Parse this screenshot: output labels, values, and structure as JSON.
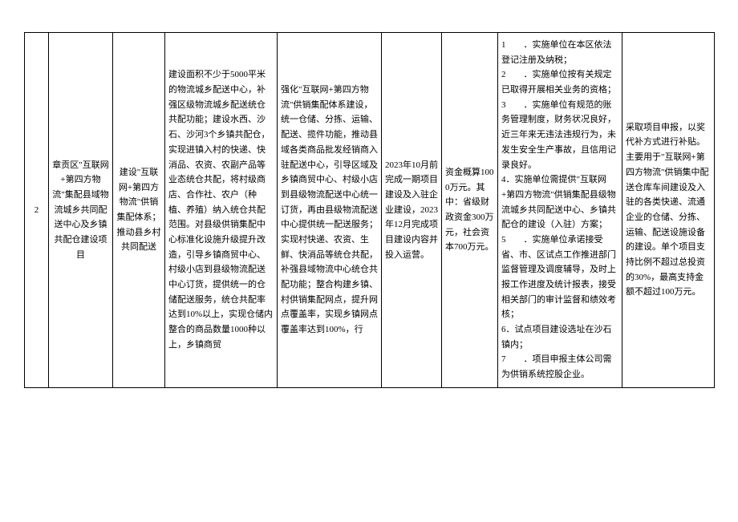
{
  "table": {
    "row": {
      "index": "2",
      "c1": "章贡区\"互联网+第四方物流\"集配县域物流城乡共同配送中心及乡镇共配仓建设项目",
      "c2": "建设\"互联网+第四方物流\"供销集配体系；推动县乡村共同配送",
      "c3": "建设面积不少于5000平米的物流城乡配送中心，补强区级物流城乡配送统仓共配功能；建设水西、沙石、沙河3个乡镇共配仓，实现进镇入村的快递、快消品、农资、农副产品等业态统仓共配，将村级商店、合作社、农户（种植、养殖）纳入统仓共配范围。对县级供销集配中心标准化设施升级提升改造，引导乡镇商贸中心、村级小店到县级物流配送中心订货，提供统一的仓储配送服务，统仓共配率达到10%以上，实现仓储内整合的商品数量1000种以上，乡镇商贸",
      "c4": "强化\"互联网+第四方物流\"供销集配体系建设，统一仓储、分拣、运输、配送、揽件功能，推动县域各类商品批发经销商入驻配送中心，引导区域及乡镇商贸中心、村级小店到县级物流配送中心统一订货，再由县级物流配送中心提供统一配送服务；实现村快递、农资、生鲜、快消品等统仓共配，补强县域物流中心统仓共配功能；整合构建乡镇、村供销集配网点，提升网点覆盖率，实现乡镇网点覆盖率达到100%，行",
      "c5": "2023年10月前完成一期项目建设及入驻企业建设，2023年12月完成项目建设内容并投入运营。",
      "c6": "资金概算1000万元。其中：省级财政资金300万元，社会资本700万元。",
      "c7": "1　　．实施单位在本区依法登记注册及纳税；\n2　　．实施单位按有关规定已取得开展相关业务的资格；\n3　　．实施单位有规范的账务管理制度，财务状况良好，近三年来无违法违规行为，未发生安全生产事故，且信用记录良好。\n4．实施单位需提供\"互联网+第四方物流\"供销集配县级物流城乡共同配送中心、乡镇共配仓的建设（入驻）方案；\n5　　．实施单位承诺接受省、市、区试点工作推进部门监督管理及调度辅导，及时上报工作进度及统计报表，接受相关部门的审计监督和绩效考核；\n6．试点项目建设选址在沙石镇内；\n7　　．项目申报主体公司需为供销系统控股企业。",
      "c8": "采取项目申报，以奖代补方式进行补贴。主要用于\"互联网+第四方物流\"供销集中配送仓库车间建设及入驻的各类快递、流通企业的仓储、分拣、运输、配送设施设备的建设。单个项目支持比例不超过总投资的30%，最高支持金额不超过100万元。"
    }
  }
}
